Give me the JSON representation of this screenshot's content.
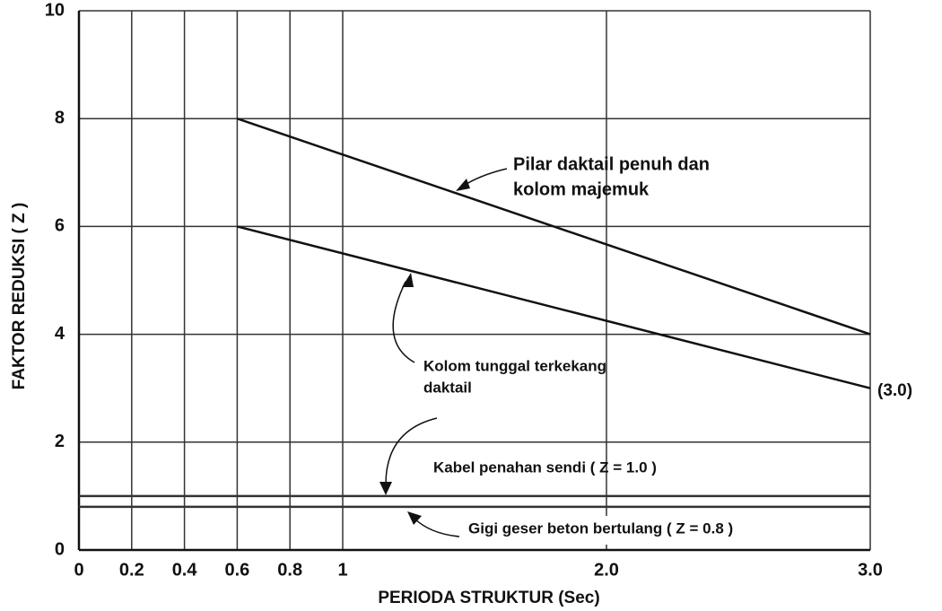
{
  "chart_data": {
    "type": "line",
    "x_label": "PERIODA STRUKTUR (Sec)",
    "y_label": "FAKTOR REDUKSI ( Z )",
    "xlim": [
      0,
      3
    ],
    "ylim": [
      0,
      10
    ],
    "xticks": [
      0,
      0.2,
      0.4,
      0.6,
      0.8,
      1,
      {
        "value": 2,
        "label": "2.0"
      },
      {
        "value": 3,
        "label": "3.0"
      }
    ],
    "yticks": [
      0,
      2,
      4,
      6,
      8,
      10
    ],
    "grid": true,
    "series": [
      {
        "color": "#111111",
        "x": [
          0.6,
          3
        ],
        "values": [
          8,
          4
        ]
      },
      {
        "color": "#111111",
        "x": [
          0.6,
          3
        ],
        "values": [
          6,
          3
        ]
      },
      {
        "color": "#333333",
        "x": [
          0,
          3
        ],
        "values": [
          1,
          1
        ]
      },
      {
        "color": "#333333",
        "x": [
          0,
          3
        ],
        "values": [
          0.8,
          0.8
        ]
      }
    ],
    "annotations": [
      [
        "Pilar daktail penuh dan",
        "kolom majemuk"
      ],
      [
        "Kolom tunggal terkekang",
        "daktail"
      ],
      [
        "Kabel penahan sendi ( Z = 1.0 )"
      ],
      [
        "Gigi geser beton bertulang ( Z = 0.8 )"
      ],
      [
        "(3.0)"
      ]
    ]
  }
}
